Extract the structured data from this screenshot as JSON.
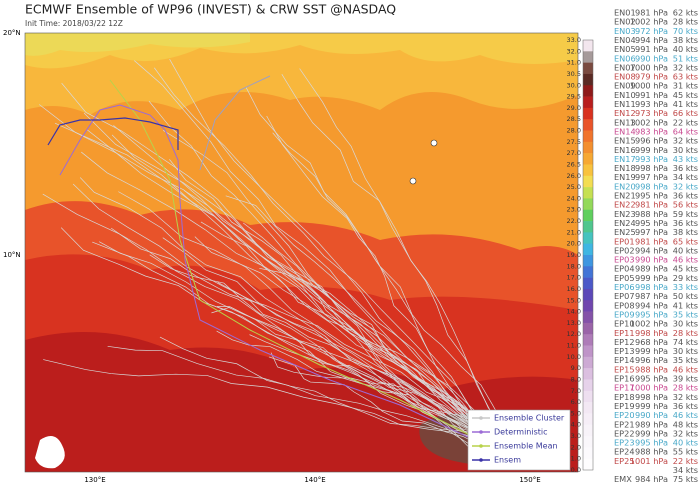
{
  "header": {
    "title": "ECMWF Ensemble of WP96 (INVEST) & CRW SST @NASDAQ",
    "init": "Init Time: 2018/03/22 12Z"
  },
  "axes": {
    "lat": [
      "20°N",
      "10°N"
    ],
    "lon": [
      "130°E",
      "140°E",
      "150°E"
    ]
  },
  "colorbar": {
    "ticks": [
      "33.0",
      "32.0",
      "31.0",
      "30.5",
      "30.0",
      "29.5",
      "29.0",
      "28.5",
      "28.0",
      "27.5",
      "27.0",
      "26.5",
      "26.0",
      "25.0",
      "24.0",
      "23.0",
      "22.0",
      "21.0",
      "20.0",
      "19.0",
      "18.0",
      "17.0",
      "16.0",
      "15.0",
      "14.0",
      "13.0",
      "12.0",
      "11.0",
      "10.0",
      "9.0",
      "8.0",
      "7.0",
      "6.0",
      "5.0",
      "4.0",
      "3.0",
      "2.0",
      "1.0",
      "0.0"
    ],
    "colors": [
      "#f3e6ee",
      "#a69a9a",
      "#7a4a40",
      "#5a2a24",
      "#8e1a1a",
      "#b81e1e",
      "#d8311f",
      "#e9542a",
      "#f0742c",
      "#f38f2f",
      "#f6a833",
      "#f8c23e",
      "#f3dd52",
      "#c6e052",
      "#93d95a",
      "#5fcf5e",
      "#4fc68e",
      "#45c3bf",
      "#3fb6e2",
      "#3e96e0",
      "#4274d6",
      "#4b58c8",
      "#5c48b8",
      "#7046ae",
      "#8452a8",
      "#9a64a8",
      "#ae7cb8",
      "#bf94c8",
      "#cdaad4",
      "#dbbfe0",
      "#e6d2ea",
      "#eedff0",
      "#f3e8f4",
      "#f6eef7",
      "#f8f3f9",
      "#faf7fb",
      "#fcfafd",
      "#fefdfe"
    ]
  },
  "members": [
    {
      "name": "EN01",
      "pressure": "981 hPa",
      "wind": "62 kts"
    },
    {
      "name": "EN02",
      "pressure": "1002 hPa",
      "wind": "28 kts"
    },
    {
      "name": "EN03",
      "pressure": "972 hPa",
      "wind": "70 kts"
    },
    {
      "name": "EN04",
      "pressure": "994 hPa",
      "wind": "38 kts"
    },
    {
      "name": "EN05",
      "pressure": "991 hPa",
      "wind": "40 kts"
    },
    {
      "name": "EN06",
      "pressure": "990 hPa",
      "wind": "51 kts"
    },
    {
      "name": "EN07",
      "pressure": "1000 hPa",
      "wind": "32 kts"
    },
    {
      "name": "EN08",
      "pressure": "979 hPa",
      "wind": "63 kts"
    },
    {
      "name": "EN09",
      "pressure": "1000 hPa",
      "wind": "31 kts"
    },
    {
      "name": "EN10",
      "pressure": "991 hPa",
      "wind": "45 kts"
    },
    {
      "name": "EN11",
      "pressure": "993 hPa",
      "wind": "41 kts"
    },
    {
      "name": "EN12",
      "pressure": "973 hPa",
      "wind": "66 kts"
    },
    {
      "name": "EN13",
      "pressure": "1002 hPa",
      "wind": "22 kts"
    },
    {
      "name": "EN14",
      "pressure": "983 hPa",
      "wind": "64 kts"
    },
    {
      "name": "EN15",
      "pressure": "996 hPa",
      "wind": "32 kts"
    },
    {
      "name": "EN16",
      "pressure": "999 hPa",
      "wind": "30 kts"
    },
    {
      "name": "EN17",
      "pressure": "993 hPa",
      "wind": "43 kts"
    },
    {
      "name": "EN18",
      "pressure": "998 hPa",
      "wind": "36 kts"
    },
    {
      "name": "EN19",
      "pressure": "997 hPa",
      "wind": "34 kts"
    },
    {
      "name": "EN20",
      "pressure": "998 hPa",
      "wind": "32 kts"
    },
    {
      "name": "EN21",
      "pressure": "995 hPa",
      "wind": "36 kts"
    },
    {
      "name": "EN22",
      "pressure": "981 hPa",
      "wind": "56 kts"
    },
    {
      "name": "EN23",
      "pressure": "988 hPa",
      "wind": "59 kts"
    },
    {
      "name": "EN24",
      "pressure": "995 hPa",
      "wind": "36 kts"
    },
    {
      "name": "EN25",
      "pressure": "997 hPa",
      "wind": "38 kts"
    },
    {
      "name": "EP01",
      "pressure": "981 hPa",
      "wind": "65 kts"
    },
    {
      "name": "EP02",
      "pressure": "994 hPa",
      "wind": "40 kts"
    },
    {
      "name": "EP03",
      "pressure": "990 hPa",
      "wind": "46 kts"
    },
    {
      "name": "EP04",
      "pressure": "989 hPa",
      "wind": "45 kts"
    },
    {
      "name": "EP05",
      "pressure": "999 hPa",
      "wind": "29 kts"
    },
    {
      "name": "EP06",
      "pressure": "998 hPa",
      "wind": "33 kts"
    },
    {
      "name": "EP07",
      "pressure": "987 hPa",
      "wind": "50 kts"
    },
    {
      "name": "EP08",
      "pressure": "994 hPa",
      "wind": "41 kts"
    },
    {
      "name": "EP09",
      "pressure": "995 hPa",
      "wind": "35 kts"
    },
    {
      "name": "EP10",
      "pressure": "1002 hPa",
      "wind": "30 kts"
    },
    {
      "name": "EP11",
      "pressure": "998 hPa",
      "wind": "28 kts"
    },
    {
      "name": "EP12",
      "pressure": "968 hPa",
      "wind": "74 kts"
    },
    {
      "name": "EP13",
      "pressure": "999 hPa",
      "wind": "30 kts"
    },
    {
      "name": "EP14",
      "pressure": "996 hPa",
      "wind": "35 kts"
    },
    {
      "name": "EP15",
      "pressure": "988 hPa",
      "wind": "46 kts"
    },
    {
      "name": "EP16",
      "pressure": "995 hPa",
      "wind": "39 kts"
    },
    {
      "name": "EP17",
      "pressure": "1000 hPa",
      "wind": "28 kts"
    },
    {
      "name": "EP18",
      "pressure": "998 hPa",
      "wind": "32 kts"
    },
    {
      "name": "EP19",
      "pressure": "999 hPa",
      "wind": "36 kts"
    },
    {
      "name": "EP20",
      "pressure": "990 hPa",
      "wind": "46 kts"
    },
    {
      "name": "EP21",
      "pressure": "989 hPa",
      "wind": "48 kts"
    },
    {
      "name": "EP22",
      "pressure": "999 hPa",
      "wind": "32 kts"
    },
    {
      "name": "EP23",
      "pressure": "995 hPa",
      "wind": "40 kts"
    },
    {
      "name": "EP24",
      "pressure": "988 hPa",
      "wind": "55 kts"
    },
    {
      "name": "EP25",
      "pressure": "1001 hPa",
      "wind": "22 kts"
    },
    {
      "wind": "34 kts"
    },
    {
      "name": "EMX",
      "pressure": "984 hPa",
      "wind": "75 kts"
    }
  ],
  "legend": [
    {
      "label": "Ensemble Cluster",
      "color": "#c8c8c8"
    },
    {
      "label": "Deterministic",
      "color": "#9c6bd6"
    },
    {
      "label": "Ensemble Mean",
      "color": "#b8d24a"
    },
    {
      "label": "Ensem",
      "color": "#3a32a8"
    }
  ]
}
